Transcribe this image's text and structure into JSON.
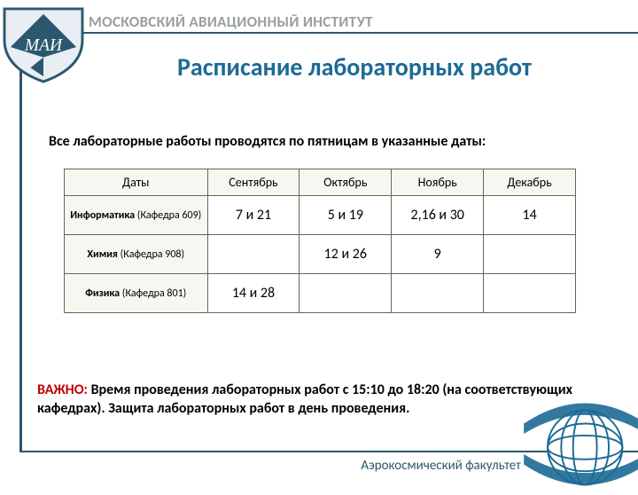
{
  "header": {
    "org": "МОСКОВСКИЙ АВИАЦИОННЫЙ ИНСТИТУТ"
  },
  "title": "Расписание лабораторных работ",
  "subtitle": "Все лабораторные работы проводятся по пятницам в указанные даты:",
  "table": {
    "columns": [
      "Даты",
      "Сентябрь",
      "Октябрь",
      "Ноябрь",
      "Декабрь"
    ],
    "col_widths": [
      "28%",
      "18%",
      "18%",
      "18%",
      "18%"
    ],
    "rows": [
      {
        "label_strong": "Информатика",
        "label_rest": " (Кафедра 609)",
        "cells": [
          "7 и 21",
          "5 и 19",
          "2,16 и 30",
          "14"
        ]
      },
      {
        "label_strong": "Химия",
        "label_rest": " (Кафедра 908)",
        "cells": [
          "",
          "12 и 26",
          "9",
          ""
        ]
      },
      {
        "label_strong": "Физика",
        "label_rest": " (Кафедра 801)",
        "cells": [
          "14 и 28",
          "",
          "",
          ""
        ]
      }
    ]
  },
  "important": {
    "label": "ВАЖНО:",
    "body": " Время проведения лабораторных работ с 15:10 до 18:20 (на соответствующих кафедрах). Защита лабораторных работ в день проведения."
  },
  "footer": {
    "faculty": "Аэрокосмический факультет"
  },
  "logo": {
    "label": "МАИ"
  },
  "colors": {
    "accent": "#2b586f",
    "title": "#1d6a95",
    "header_text": "#999f9f",
    "important": "#c00000",
    "table_header_bg": "#f7f7f1",
    "table_border": "#665548"
  }
}
